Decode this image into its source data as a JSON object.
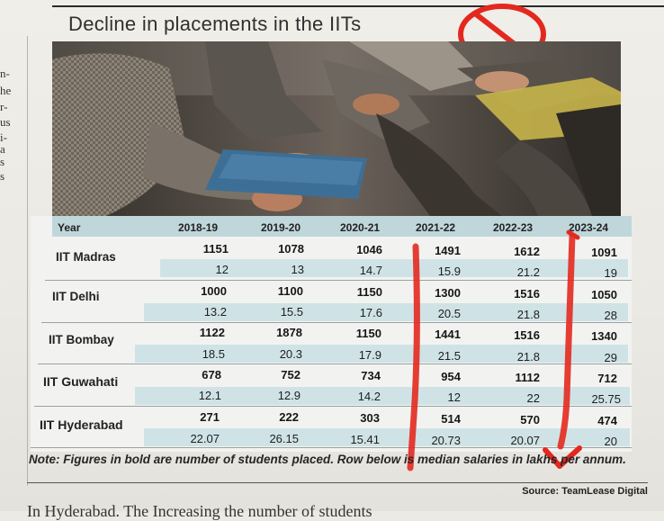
{
  "article": {
    "title": "Decline in placements in the IITs",
    "side_fragments": [
      "n-",
      "he",
      "r-",
      "us",
      "i-",
      "a",
      "s",
      "s"
    ]
  },
  "table": {
    "columns": [
      "Year",
      "2018-19",
      "2019-20",
      "2020-21",
      "2021-22",
      "2022-23",
      "2023-24"
    ],
    "rows": [
      {
        "institute": "IIT Madras",
        "placed": [
          "1151",
          "1078",
          "1046",
          "1491",
          "1612",
          "1091"
        ],
        "median": [
          "12",
          "13",
          "14.7",
          "15.9",
          "21.2",
          "19"
        ]
      },
      {
        "institute": "IIT Delhi",
        "placed": [
          "1000",
          "1100",
          "1150",
          "1300",
          "1516",
          "1050"
        ],
        "median": [
          "13.2",
          "15.5",
          "17.6",
          "20.5",
          "21.8",
          "28"
        ]
      },
      {
        "institute": "IIT Bombay",
        "placed": [
          "1122",
          "1878",
          "1150",
          "1441",
          "1516",
          "1340"
        ],
        "median": [
          "18.5",
          "20.3",
          "17.9",
          "21.5",
          "21.8",
          "29"
        ]
      },
      {
        "institute": "IIT Guwahati",
        "placed": [
          "678",
          "752",
          "734",
          "954",
          "1112",
          "712"
        ],
        "median": [
          "12.1",
          "12.9",
          "14.2",
          "12",
          "22",
          "25.75"
        ]
      },
      {
        "institute": "IIT Hyderabad",
        "placed": [
          "271",
          "222",
          "303",
          "514",
          "570",
          "474"
        ],
        "median": [
          "22.07",
          "26.15",
          "15.41",
          "20.73",
          "20.07",
          "20"
        ]
      }
    ]
  },
  "note": "Note: Figures in bold are number of students placed. Row below is median salaries in lakhs per annum.",
  "source": "Source: TeamLease Digital",
  "bottom_fragment": "In Hyderabad. The Increasing the number of students",
  "colors": {
    "header_band": "#bfd6db",
    "alt_band": "#cfe3e6",
    "annotation_red": "#e3291f"
  },
  "icons": [
    "no-sign-icon",
    "red-arrow-annotation"
  ]
}
